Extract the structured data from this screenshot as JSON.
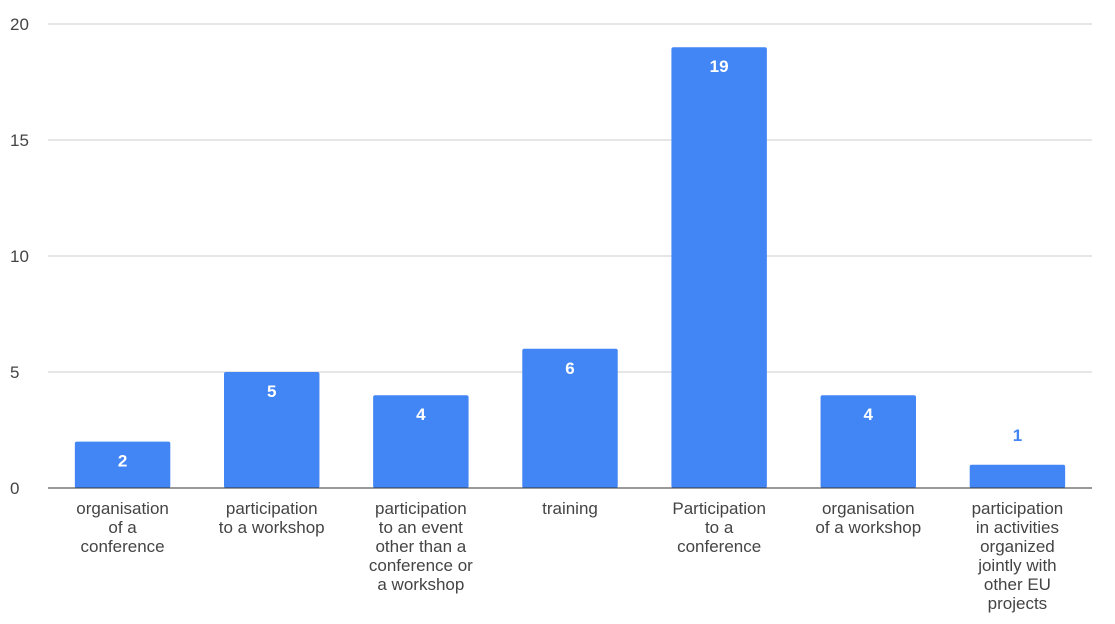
{
  "chart_data": {
    "type": "bar",
    "title": "",
    "xlabel": "",
    "ylabel": "",
    "ylim": [
      0,
      20
    ],
    "yticks": [
      0,
      5,
      10,
      15,
      20
    ],
    "grid": true,
    "legend": "none",
    "categories": [
      [
        "organisation",
        "of a",
        "conference"
      ],
      [
        "participation",
        "to a workshop"
      ],
      [
        "participation",
        "to an event",
        "other than a",
        "conference or",
        "a workshop"
      ],
      [
        "training"
      ],
      [
        "Participation",
        "to a",
        "conference"
      ],
      [
        "organisation",
        "of a workshop"
      ],
      [
        "participation",
        "in activities",
        "organized",
        "jointly with",
        "other EU",
        "projects"
      ]
    ],
    "values": [
      2,
      5,
      4,
      6,
      19,
      4,
      1
    ],
    "colors": {
      "bar": "#4285f4",
      "label_inside": "#ffffff",
      "label_outside": "#4285f4",
      "grid": "#cccccc",
      "axis": "#333333"
    }
  }
}
